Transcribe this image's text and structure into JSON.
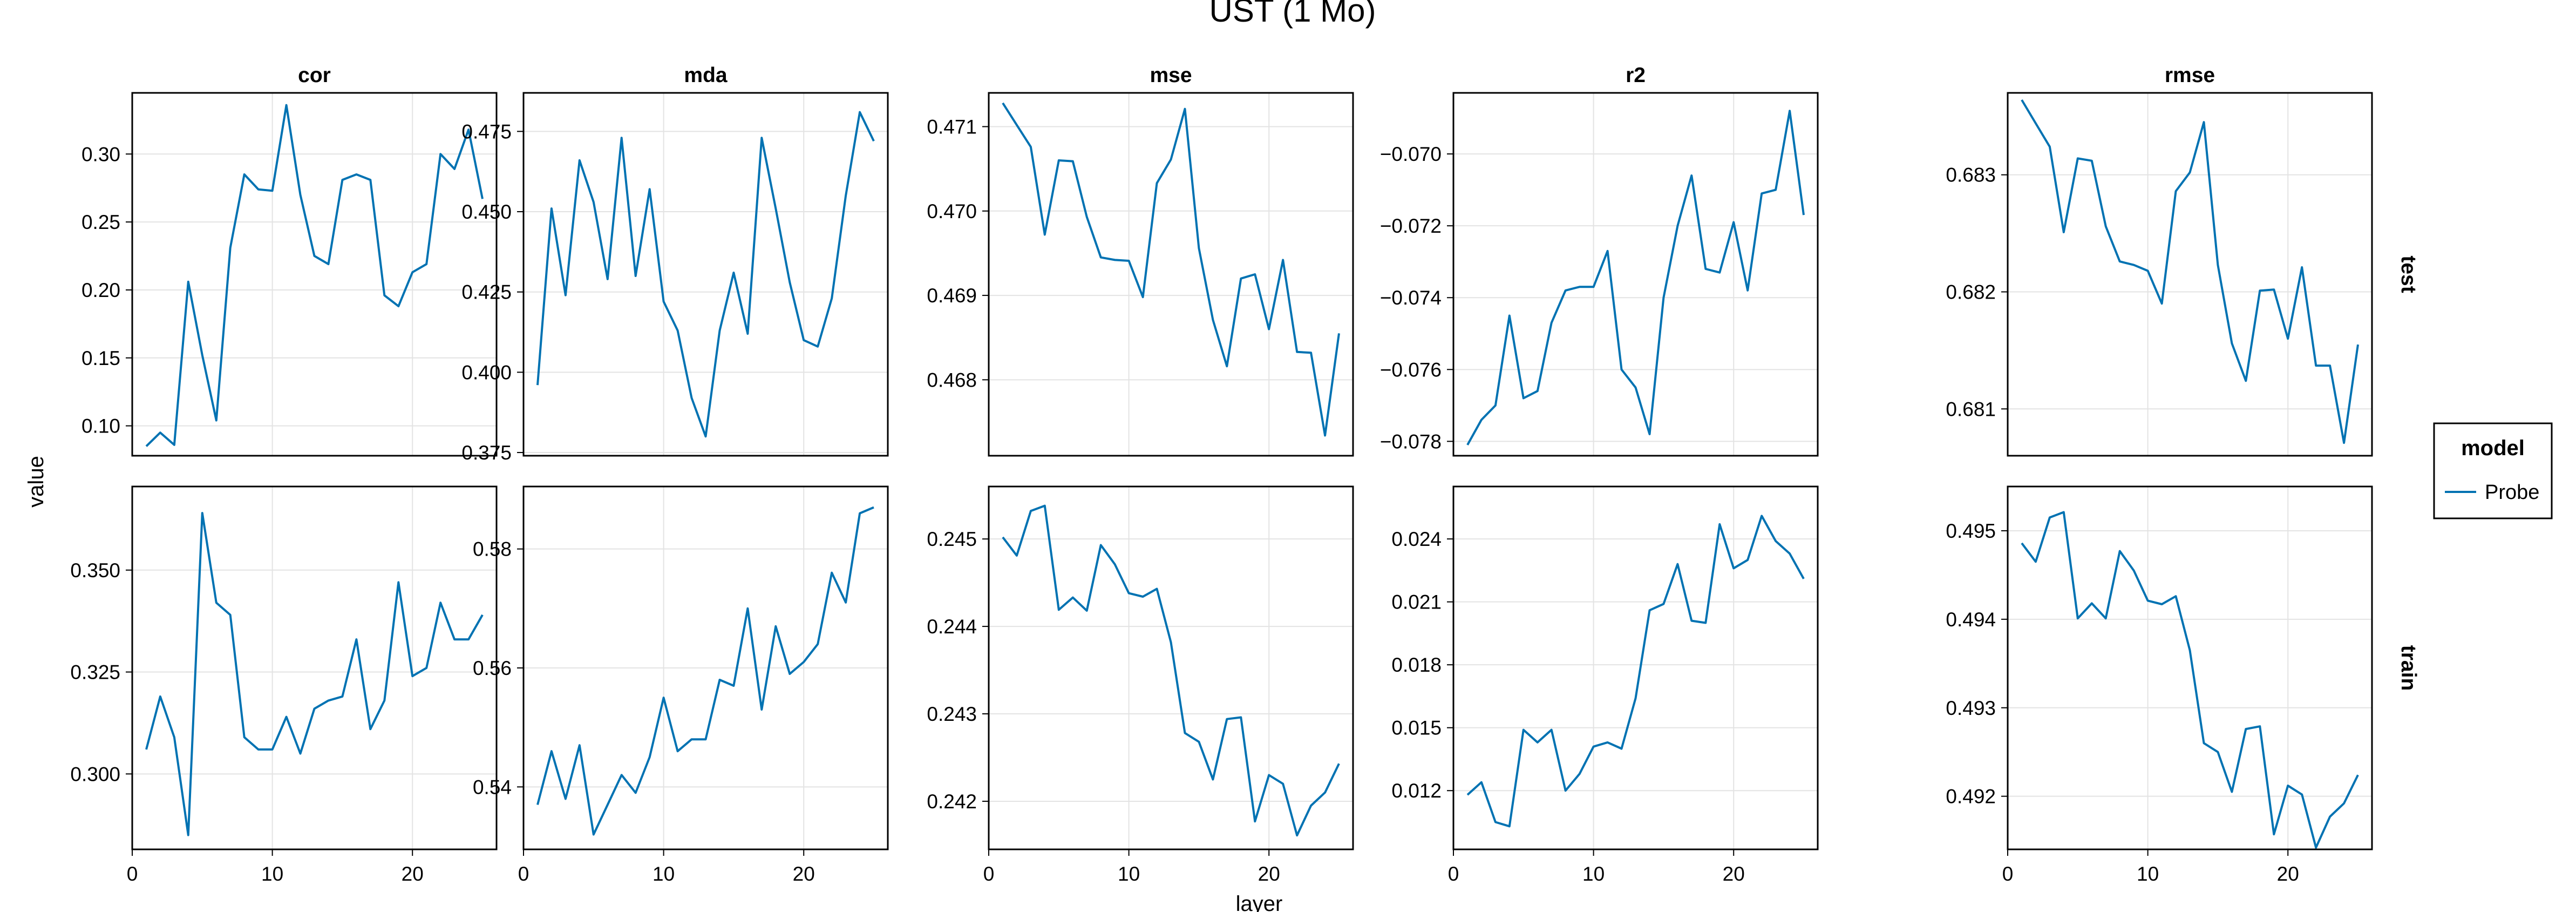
{
  "chart_data": {
    "type": "line",
    "title": "UST (1 Mo)",
    "xlabel": "layer",
    "ylabel": "value",
    "x_ticks": [
      0,
      10,
      20
    ],
    "x_tick_labels": [
      "0",
      "10",
      "20"
    ],
    "xlim": [
      0,
      26
    ],
    "column_labels": [
      "cor",
      "mda",
      "mse",
      "r2",
      "rmse"
    ],
    "row_labels": [
      "test",
      "train"
    ],
    "legend": {
      "title": "model",
      "entries": [
        {
          "label": "Probe",
          "color": "#0072B2"
        }
      ],
      "placement": "right"
    },
    "grid": true,
    "series_color": "#0072B2",
    "x": [
      1,
      2,
      3,
      4,
      5,
      6,
      7,
      8,
      9,
      10,
      11,
      12,
      13,
      14,
      15,
      16,
      17,
      18,
      19,
      20,
      21,
      22,
      23,
      24,
      25
    ],
    "panels": [
      {
        "metric": "cor",
        "split": "test",
        "ylim": [
          0.078,
          0.345
        ],
        "y_ticks": [
          0.1,
          0.15,
          0.2,
          0.25,
          0.3
        ],
        "y_tick_labels": [
          "0.10",
          "0.15",
          "0.20",
          "0.25",
          "0.30"
        ],
        "series": [
          {
            "name": "Probe",
            "values": [
              0.085,
              0.095,
              0.086,
              0.206,
              0.152,
              0.104,
              0.231,
              0.285,
              0.274,
              0.273,
              0.336,
              0.27,
              0.225,
              0.219,
              0.281,
              0.285,
              0.281,
              0.196,
              0.188,
              0.213,
              0.219,
              0.3,
              0.289,
              0.318,
              0.267
            ]
          }
        ]
      },
      {
        "metric": "mda",
        "split": "test",
        "ylim": [
          0.374,
          0.487
        ],
        "y_ticks": [
          0.375,
          0.4,
          0.425,
          0.45,
          0.475
        ],
        "y_tick_labels": [
          "0.375",
          "0.400",
          "0.425",
          "0.450",
          "0.475"
        ],
        "series": [
          {
            "name": "Probe",
            "values": [
              0.396,
              0.451,
              0.424,
              0.466,
              0.453,
              0.429,
              0.473,
              0.43,
              0.457,
              0.422,
              0.413,
              0.392,
              0.38,
              0.413,
              0.431,
              0.412,
              0.473,
              0.451,
              0.428,
              0.41,
              0.408,
              0.423,
              0.455,
              0.481,
              0.472
            ]
          }
        ]
      },
      {
        "metric": "mse",
        "split": "test",
        "ylim": [
          0.4671,
          0.4714
        ],
        "y_ticks": [
          0.468,
          0.469,
          0.47,
          0.471
        ],
        "y_tick_labels": [
          "0.468",
          "0.469",
          "0.470",
          "0.471"
        ],
        "series": [
          {
            "name": "Probe",
            "values": [
              0.47128,
              0.47102,
              0.47076,
              0.46972,
              0.4706,
              0.47059,
              0.46993,
              0.46945,
              0.46942,
              0.46941,
              0.46898,
              0.47033,
              0.47061,
              0.47121,
              0.46956,
              0.46871,
              0.46816,
              0.4692,
              0.46925,
              0.4686,
              0.46942,
              0.46833,
              0.46832,
              0.46734,
              0.46855
            ]
          }
        ]
      },
      {
        "metric": "r2",
        "split": "test",
        "ylim": [
          -0.0784,
          -0.0683
        ],
        "y_ticks": [
          -0.078,
          -0.076,
          -0.074,
          -0.072,
          -0.07
        ],
        "y_tick_labels": [
          "−0.078",
          "−0.076",
          "−0.074",
          "−0.072",
          "−0.070"
        ],
        "series": [
          {
            "name": "Probe",
            "values": [
              -0.0781,
              -0.0774,
              -0.077,
              -0.0745,
              -0.0768,
              -0.0766,
              -0.0747,
              -0.0738,
              -0.0737,
              -0.0737,
              -0.0727,
              -0.076,
              -0.0765,
              -0.0778,
              -0.074,
              -0.072,
              -0.0706,
              -0.0732,
              -0.0733,
              -0.0719,
              -0.0738,
              -0.0711,
              -0.071,
              -0.0688,
              -0.0717
            ]
          }
        ]
      },
      {
        "metric": "rmse",
        "split": "test",
        "ylim": [
          0.6806,
          0.6837
        ],
        "y_ticks": [
          0.681,
          0.682,
          0.683
        ],
        "y_tick_labels": [
          "0.681",
          "0.682",
          "0.683"
        ],
        "series": [
          {
            "name": "Probe",
            "values": [
              0.68364,
              0.68344,
              0.68324,
              0.68251,
              0.68314,
              0.68312,
              0.68256,
              0.68226,
              0.68223,
              0.68218,
              0.6819,
              0.68286,
              0.68302,
              0.68345,
              0.68223,
              0.68156,
              0.68124,
              0.68201,
              0.68202,
              0.6816,
              0.68221,
              0.68137,
              0.68137,
              0.68071,
              0.68155
            ]
          }
        ]
      },
      {
        "metric": "cor",
        "split": "train",
        "ylim": [
          0.2815,
          0.3705
        ],
        "y_ticks": [
          0.3,
          0.325,
          0.35
        ],
        "y_tick_labels": [
          "0.300",
          "0.325",
          "0.350"
        ],
        "series": [
          {
            "name": "Probe",
            "values": [
              0.306,
              0.319,
              0.309,
              0.285,
              0.364,
              0.342,
              0.339,
              0.309,
              0.306,
              0.306,
              0.314,
              0.305,
              0.316,
              0.318,
              0.319,
              0.333,
              0.311,
              0.318,
              0.347,
              0.324,
              0.326,
              0.342,
              0.333,
              0.333,
              0.339
            ]
          }
        ]
      },
      {
        "metric": "mda",
        "split": "train",
        "ylim": [
          0.5295,
          0.5905
        ],
        "y_ticks": [
          0.54,
          0.56,
          0.58
        ],
        "y_tick_labels": [
          "0.54",
          "0.56",
          "0.58"
        ],
        "series": [
          {
            "name": "Probe",
            "values": [
              0.537,
              0.546,
              0.538,
              0.547,
              0.532,
              0.537,
              0.542,
              0.539,
              0.545,
              0.555,
              0.546,
              0.548,
              0.548,
              0.558,
              0.557,
              0.57,
              0.553,
              0.567,
              0.559,
              0.561,
              0.564,
              0.576,
              0.571,
              0.586,
              0.587
            ]
          }
        ]
      },
      {
        "metric": "mse",
        "split": "train",
        "ylim": [
          0.24145,
          0.2456
        ],
        "y_ticks": [
          0.242,
          0.243,
          0.244,
          0.245
        ],
        "y_tick_labels": [
          "0.242",
          "0.243",
          "0.244",
          "0.245"
        ],
        "series": [
          {
            "name": "Probe",
            "values": [
              0.24502,
              0.24481,
              0.24532,
              0.24538,
              0.24419,
              0.24433,
              0.24418,
              0.24493,
              0.24471,
              0.24438,
              0.24434,
              0.24443,
              0.24382,
              0.24278,
              0.24268,
              0.24225,
              0.24294,
              0.24296,
              0.24177,
              0.2423,
              0.2422,
              0.24161,
              0.24195,
              0.2421,
              0.24243
            ]
          }
        ]
      },
      {
        "metric": "r2",
        "split": "train",
        "ylim": [
          0.0092,
          0.0265
        ],
        "y_ticks": [
          0.012,
          0.015,
          0.018,
          0.021,
          0.024
        ],
        "y_tick_labels": [
          "0.012",
          "0.015",
          "0.018",
          "0.021",
          "0.024"
        ],
        "series": [
          {
            "name": "Probe",
            "values": [
              0.0118,
              0.0124,
              0.0105,
              0.0103,
              0.0149,
              0.0143,
              0.0149,
              0.012,
              0.0128,
              0.0141,
              0.0143,
              0.014,
              0.0164,
              0.0206,
              0.0209,
              0.0228,
              0.0201,
              0.02,
              0.0247,
              0.0226,
              0.023,
              0.0251,
              0.0239,
              0.0233,
              0.0221
            ]
          }
        ]
      },
      {
        "metric": "rmse",
        "split": "train",
        "ylim": [
          0.4914,
          0.4955
        ],
        "y_ticks": [
          0.492,
          0.493,
          0.494,
          0.495
        ],
        "y_tick_labels": [
          "0.492",
          "0.493",
          "0.494",
          "0.495"
        ],
        "series": [
          {
            "name": "Probe",
            "values": [
              0.49486,
              0.49465,
              0.49515,
              0.49521,
              0.49401,
              0.49418,
              0.49401,
              0.49477,
              0.49455,
              0.49421,
              0.49417,
              0.49426,
              0.49365,
              0.4926,
              0.4925,
              0.49205,
              0.49276,
              0.49279,
              0.49157,
              0.49212,
              0.49202,
              0.49142,
              0.49177,
              0.49192,
              0.49224
            ]
          }
        ]
      }
    ]
  }
}
